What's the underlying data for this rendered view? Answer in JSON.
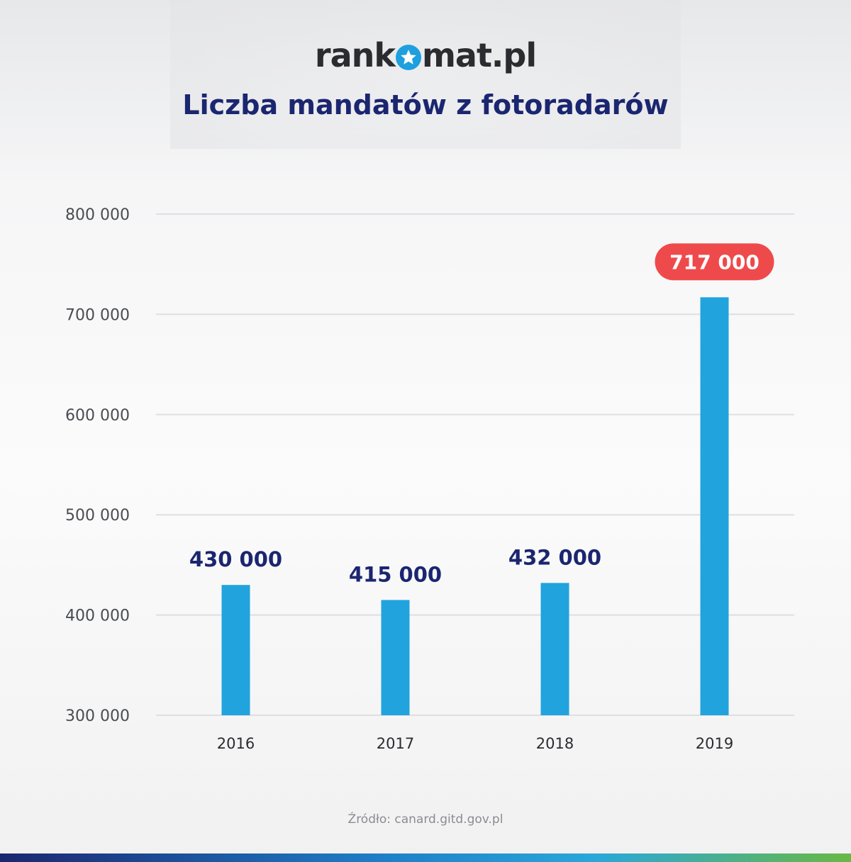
{
  "brand": {
    "logo_prefix": "rank",
    "logo_suffix": "mat.pl"
  },
  "source": "Źródło: canard.gitd.gov.pl",
  "colors": {
    "bar": "#21a3de",
    "highlight": "#ef4a4b",
    "label": "#1b2670",
    "grid": "#dedfe1"
  },
  "chart_data": {
    "type": "bar",
    "title": "Liczba mandatów z fotoradarów",
    "categories": [
      "2016",
      "2017",
      "2018",
      "2019"
    ],
    "values": [
      430000,
      415000,
      432000,
      717000
    ],
    "data_labels": [
      "430 000",
      "415 000",
      "432 000",
      "717 000"
    ],
    "highlight_index": 3,
    "ylim": [
      300000,
      800000
    ],
    "yticks": [
      300000,
      400000,
      500000,
      600000,
      700000,
      800000
    ],
    "ytick_labels": [
      "300 000",
      "400 000",
      "500 000",
      "600 000",
      "700 000",
      "800 000"
    ],
    "grid": true,
    "legend": "none"
  }
}
